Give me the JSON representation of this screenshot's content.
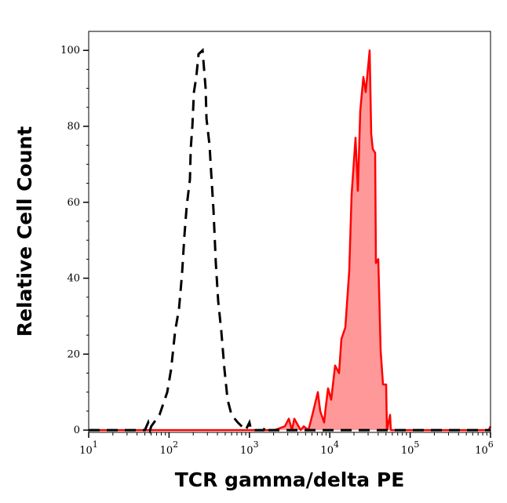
{
  "chart_data": {
    "type": "area",
    "xlabel": "TCR gamma/delta PE",
    "ylabel": "Relative Cell Count",
    "xscale": "log",
    "xlim": [
      10,
      1000000
    ],
    "ylim": [
      -0.6,
      105
    ],
    "x_ticks": [
      {
        "base": "10",
        "exp": "1",
        "value": 10
      },
      {
        "base": "10",
        "exp": "2",
        "value": 100
      },
      {
        "base": "10",
        "exp": "3",
        "value": 1000
      },
      {
        "base": "10",
        "exp": "4",
        "value": 10000
      },
      {
        "base": "10",
        "exp": "5",
        "value": 100000
      },
      {
        "base": "10",
        "exp": "6",
        "value": 1000000
      }
    ],
    "y_ticks": [
      "0",
      "20",
      "40",
      "60",
      "80",
      "100"
    ],
    "grid": false,
    "series": [
      {
        "style": "dashed-line",
        "color": "#000000",
        "points": [
          [
            10,
            0
          ],
          [
            50,
            0
          ],
          [
            55,
            2
          ],
          [
            58,
            0
          ],
          [
            60,
            1
          ],
          [
            76,
            4
          ],
          [
            85,
            7
          ],
          [
            95,
            10
          ],
          [
            106,
            16
          ],
          [
            119,
            26
          ],
          [
            133,
            32
          ],
          [
            145,
            41
          ],
          [
            155,
            51
          ],
          [
            166,
            59
          ],
          [
            182,
            66
          ],
          [
            186,
            74
          ],
          [
            195,
            80
          ],
          [
            204,
            89
          ],
          [
            218,
            93
          ],
          [
            233,
            99
          ],
          [
            261,
            100
          ],
          [
            285,
            90
          ],
          [
            292,
            82
          ],
          [
            319,
            75
          ],
          [
            334,
            68
          ],
          [
            357,
            58
          ],
          [
            382,
            44
          ],
          [
            409,
            34
          ],
          [
            447,
            26
          ],
          [
            489,
            16
          ],
          [
            535,
            8
          ],
          [
            599,
            4
          ],
          [
            717,
            2
          ],
          [
            897,
            0
          ],
          [
            1000,
            2
          ],
          [
            1050,
            0
          ],
          [
            1500,
            0
          ],
          [
            1600,
            1
          ],
          [
            1700,
            0
          ],
          [
            1000000,
            0
          ]
        ]
      },
      {
        "style": "filled",
        "color": "#ff0000",
        "fill": "#ff9999",
        "points": [
          [
            10,
            0
          ],
          [
            2060,
            0
          ],
          [
            2760,
            1
          ],
          [
            3090,
            3
          ],
          [
            3380,
            0
          ],
          [
            3620,
            3
          ],
          [
            4340,
            0
          ],
          [
            4740,
            1
          ],
          [
            5420,
            0
          ],
          [
            6070,
            4
          ],
          [
            7110,
            10
          ],
          [
            7600,
            5
          ],
          [
            8510,
            2
          ],
          [
            8900,
            6
          ],
          [
            9520,
            11
          ],
          [
            10420,
            8
          ],
          [
            11650,
            17
          ],
          [
            13030,
            15
          ],
          [
            13960,
            24
          ],
          [
            15610,
            27
          ],
          [
            17470,
            42
          ],
          [
            18670,
            62
          ],
          [
            20890,
            77
          ],
          [
            22380,
            63
          ],
          [
            23930,
            84
          ],
          [
            26180,
            93
          ],
          [
            28000,
            89
          ],
          [
            31330,
            100
          ],
          [
            32810,
            78
          ],
          [
            34300,
            74
          ],
          [
            36680,
            73
          ],
          [
            37530,
            44
          ],
          [
            40150,
            45
          ],
          [
            42950,
            21
          ],
          [
            45920,
            12
          ],
          [
            50230,
            12
          ],
          [
            51400,
            0
          ],
          [
            56230,
            4
          ],
          [
            57540,
            0
          ],
          [
            950000,
            0
          ],
          [
            1000000,
            1
          ]
        ]
      }
    ]
  }
}
